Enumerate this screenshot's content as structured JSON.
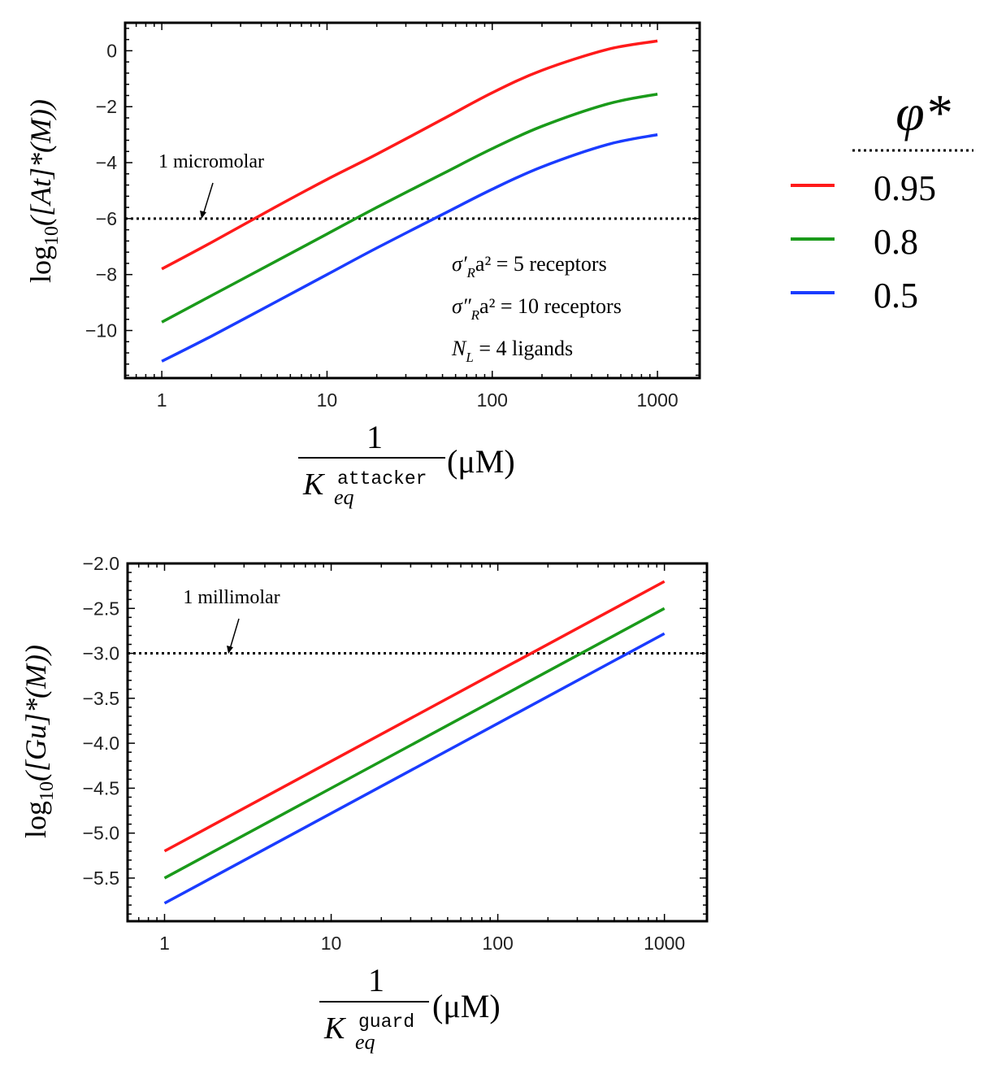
{
  "colors": {
    "red": "#ff1a1a",
    "green": "#1a9a1a",
    "blue": "#1a3cff",
    "axis": "#000000"
  },
  "legend": {
    "title": "φ*",
    "items": [
      {
        "label": "0.95",
        "color": "#ff1a1a"
      },
      {
        "label": "0.8",
        "color": "#1a9a1a"
      },
      {
        "label": "0.5",
        "color": "#1a3cff"
      }
    ]
  },
  "chart_data": [
    {
      "type": "line",
      "xscale": "log",
      "x": [
        1,
        2,
        5,
        10,
        20,
        50,
        100,
        200,
        500,
        1000
      ],
      "xlim": [
        0.6,
        1800
      ],
      "ylim": [
        -11.7,
        1.0
      ],
      "xticks": [
        "1",
        "10",
        "100",
        "1000"
      ],
      "xtick_values": [
        1,
        10,
        100,
        1000
      ],
      "yticks": [
        "0",
        "−2",
        "−4",
        "−6",
        "−8",
        "−10"
      ],
      "ytick_values": [
        0,
        -2,
        -4,
        -6,
        -8,
        -10
      ],
      "ylabel": {
        "pre": "log",
        "sub": "10",
        "post": "([At]*(M))"
      },
      "xlabel": {
        "num": "1",
        "K": "K",
        "sup": "attacker",
        "sub": "eq",
        "unit": "(μM)"
      },
      "series": [
        {
          "name": "0.95",
          "color": "#ff1a1a",
          "values": [
            -7.8,
            -6.85,
            -5.55,
            -4.6,
            -3.7,
            -2.45,
            -1.5,
            -0.7,
            0.05,
            0.35
          ]
        },
        {
          "name": "0.8",
          "color": "#1a9a1a",
          "values": [
            -9.7,
            -8.75,
            -7.5,
            -6.55,
            -5.6,
            -4.4,
            -3.5,
            -2.7,
            -1.9,
            -1.55
          ]
        },
        {
          "name": "0.5",
          "color": "#1a3cff",
          "values": [
            -11.1,
            -10.2,
            -8.95,
            -8.0,
            -7.05,
            -5.85,
            -4.95,
            -4.15,
            -3.35,
            -3.0
          ]
        }
      ],
      "reference": {
        "value": -6,
        "label": "1 micromolar"
      },
      "annotations": [
        {
          "math": "σ′",
          "sub": "R",
          "rest": "a² = 5 receptors"
        },
        {
          "math": "σ″",
          "sub": "R",
          "rest": "a² = 10 receptors"
        },
        {
          "math": "N",
          "sub": "L",
          "rest": " = 4 ligands"
        }
      ]
    },
    {
      "type": "line",
      "xscale": "log",
      "x": [
        1,
        1000
      ],
      "xlim": [
        0.6,
        1800
      ],
      "ylim": [
        -5.98,
        -2.0
      ],
      "xticks": [
        "1",
        "10",
        "100",
        "1000"
      ],
      "xtick_values": [
        1,
        10,
        100,
        1000
      ],
      "yticks": [
        "−2.0",
        "−2.5",
        "−3.0",
        "−3.5",
        "−4.0",
        "−4.5",
        "−5.0",
        "−5.5"
      ],
      "ytick_values": [
        -2.0,
        -2.5,
        -3.0,
        -3.5,
        -4.0,
        -4.5,
        -5.0,
        -5.5
      ],
      "ylabel": {
        "pre": "log",
        "sub": "10",
        "post": "([Gu]*(M))"
      },
      "xlabel": {
        "num": "1",
        "K": "K",
        "sup": "guard",
        "sub": "eq",
        "unit": "(μM)"
      },
      "series": [
        {
          "name": "0.95",
          "color": "#ff1a1a",
          "values": [
            -5.2,
            -2.2
          ]
        },
        {
          "name": "0.8",
          "color": "#1a9a1a",
          "values": [
            -5.5,
            -2.5
          ]
        },
        {
          "name": "0.5",
          "color": "#1a3cff",
          "values": [
            -5.78,
            -2.78
          ]
        }
      ],
      "reference": {
        "value": -3.0,
        "label": "1 millimolar"
      }
    }
  ]
}
